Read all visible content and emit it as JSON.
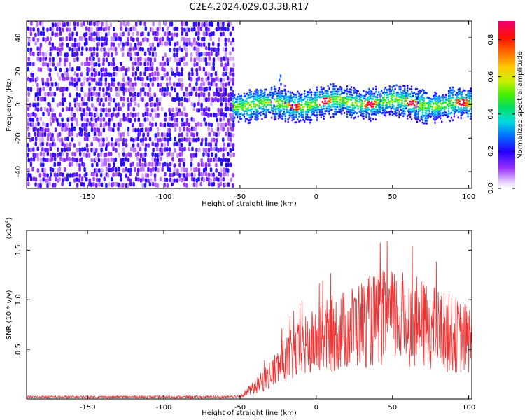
{
  "title": "C2E4.2024.029.03.38.R17",
  "chart_data": [
    {
      "type": "heatmap",
      "xlabel": "Height of straight line (km)",
      "ylabel": "Frequency (Hz)",
      "xlim": [
        -190,
        102
      ],
      "ylim": [
        -50,
        50
      ],
      "xticks": [
        -150,
        -100,
        -50,
        0,
        50,
        100
      ],
      "yticks": [
        -40,
        -20,
        0,
        20,
        40
      ],
      "colorbar": {
        "label": "Normalized spectral amplitude",
        "range": [
          0,
          0.9
        ],
        "ticks": [
          0.0,
          0.2,
          0.4,
          0.6,
          0.8
        ]
      },
      "grid": false,
      "regions": [
        {
          "x_range": [
            -190,
            -55
          ],
          "description": "broadband noise across all frequencies, amplitude ~0.1-0.25"
        },
        {
          "x_range": [
            -55,
            102
          ],
          "center_freq": 0,
          "half_width_hz": 8,
          "peak_amplitude": 0.9
        }
      ],
      "hot_spots_x": [
        -15,
        5,
        35,
        62,
        95
      ]
    },
    {
      "type": "line",
      "xlabel": "Height of straight line (km)",
      "ylabel": "SNR (10 * v/v)",
      "y_multiplier": "(x10",
      "y_multiplier_exp": "4",
      "y_multiplier_close": ")",
      "xlim": [
        -190,
        102
      ],
      "ylim": [
        0,
        1.7
      ],
      "xticks": [
        -150,
        -100,
        -50,
        0,
        50,
        100
      ],
      "yticks": [
        0.5,
        1.0,
        1.5
      ],
      "ytick_labels": [
        "0.5",
        "1.0",
        "1.5"
      ],
      "grid": false,
      "series": [
        {
          "color": "#ee3333",
          "x": [
            -190,
            -100,
            -60,
            -50,
            -40,
            -30,
            -20,
            -10,
            0,
            10,
            20,
            30,
            40,
            50,
            60,
            70,
            80,
            90,
            100,
            102
          ],
          "y": [
            0.02,
            0.02,
            0.02,
            0.03,
            0.12,
            0.25,
            0.4,
            0.5,
            0.58,
            0.65,
            0.7,
            0.76,
            0.8,
            0.82,
            0.8,
            0.75,
            0.7,
            0.65,
            0.6,
            0.6
          ]
        }
      ]
    }
  ]
}
